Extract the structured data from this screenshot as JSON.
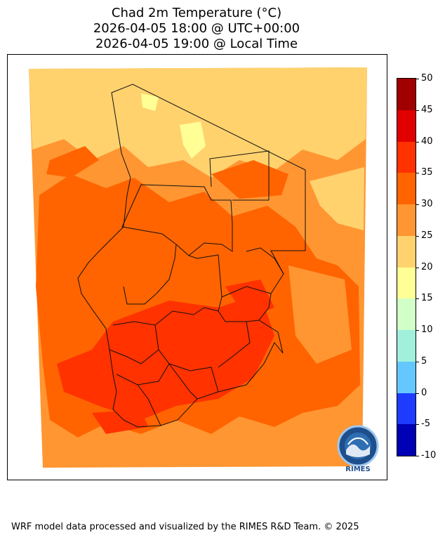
{
  "title": {
    "line1": "Chad 2m Temperature (°C)",
    "line2": "2026-04-05 18:00 @ UTC+00:00",
    "line3": "2026-04-05 19:00 @ Local Time"
  },
  "colorbar": {
    "levels": [
      -10,
      -5,
      0,
      5,
      10,
      15,
      20,
      25,
      30,
      35,
      40,
      45,
      50
    ],
    "tick_labels": [
      "-10",
      "-5",
      "0",
      "5",
      "10",
      "15",
      "20",
      "25",
      "30",
      "35",
      "40",
      "45",
      "50"
    ],
    "colors": [
      "#0000b4",
      "#1e3cff",
      "#64c8ff",
      "#a0f0dc",
      "#d2ffc8",
      "#ffff96",
      "#ffd26e",
      "#ff9632",
      "#ff6400",
      "#ff3200",
      "#e10000",
      "#a00000"
    ]
  },
  "map": {
    "region": "Chad",
    "variable": "2m Temperature",
    "dominant_color": "#ff9632"
  },
  "logo": {
    "text": "RIMES",
    "icon": "rimes-globe-logo-icon"
  },
  "footer": "WRF model data processed and visualized by the RIMES R&D Team. © 2025"
}
